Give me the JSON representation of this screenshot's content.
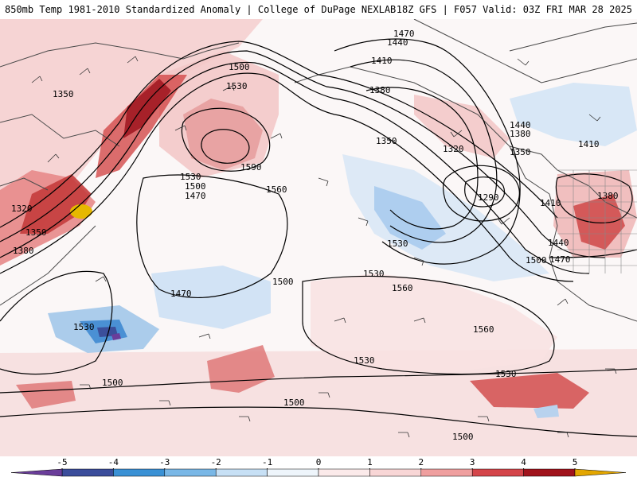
{
  "header": {
    "left_title": "850mb Temp 1981-2010 Standardized Anomaly | College of DuPage NEXLAB",
    "right_title": "18Z GFS | F057 Valid: 03Z FRI MAR 28 2025"
  },
  "contours": [
    {
      "value": "1470"
    },
    {
      "value": "1440"
    },
    {
      "value": "1410"
    },
    {
      "value": "1380"
    },
    {
      "value": "1350"
    },
    {
      "value": "1320"
    },
    {
      "value": "1290"
    },
    {
      "value": "1500"
    },
    {
      "value": "1530"
    },
    {
      "value": "1560"
    },
    {
      "value": "1590"
    }
  ],
  "colorbar": {
    "ticks": [
      "-5",
      "-4",
      "-3",
      "-2",
      "-1",
      "0",
      "1",
      "2",
      "3",
      "4",
      "5"
    ],
    "colors": [
      "#6a3d9a",
      "#3b4d9b",
      "#3a91d5",
      "#79b7e6",
      "#c7e0f5",
      "#ffffff",
      "#f8d6d6",
      "#ef9f9f",
      "#d4454a",
      "#a0131c",
      "#e3a600"
    ]
  }
}
